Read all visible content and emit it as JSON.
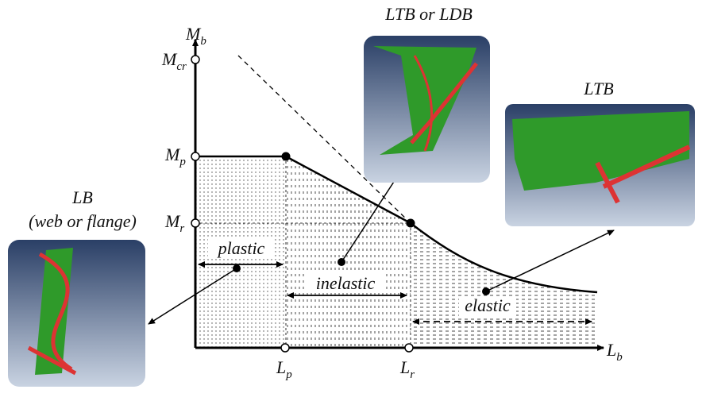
{
  "axes": {
    "y_axis": {
      "main": "M",
      "sub": "b"
    },
    "x_axis": {
      "main": "L",
      "sub": "b"
    },
    "y_labels": [
      {
        "main": "M",
        "sub": "cr"
      },
      {
        "main": "M",
        "sub": "p"
      },
      {
        "main": "M",
        "sub": "r"
      }
    ],
    "x_labels": [
      {
        "main": "L",
        "sub": "p"
      },
      {
        "main": "L",
        "sub": "r"
      }
    ]
  },
  "regions": [
    "plastic",
    "inelastic",
    "elastic"
  ],
  "callouts": [
    {
      "title": "LB",
      "subtitle": "(web or flange)"
    },
    {
      "title": "LTB or LDB"
    },
    {
      "title": "LTB"
    }
  ]
}
